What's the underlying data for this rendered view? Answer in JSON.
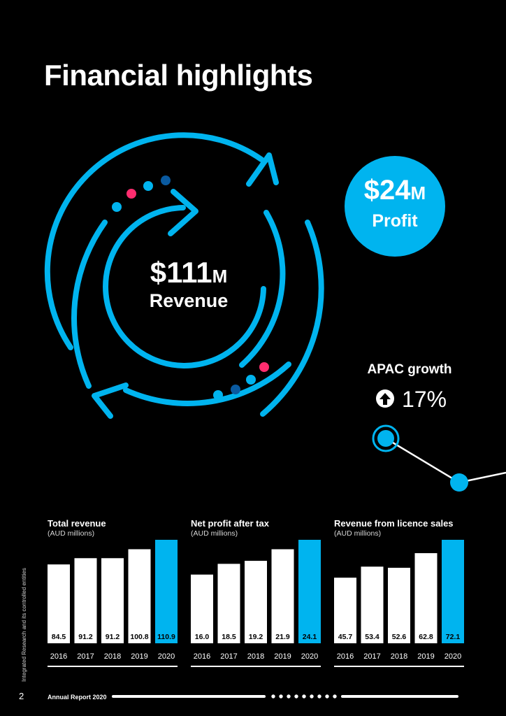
{
  "page": {
    "title": "Financial highlights",
    "side_note": "Integrated Research and its controlled entities",
    "page_number": "2",
    "footer_title": "Annual Report 2020"
  },
  "highlights": {
    "revenue": {
      "value": "$111",
      "unit": "M",
      "label": "Revenue"
    },
    "profit": {
      "value": "$24",
      "unit": "M",
      "label": "Profit"
    },
    "apac": {
      "label": "APAC growth",
      "value": "17%"
    }
  },
  "colors": {
    "accent": "#00b4ef",
    "accent_dark": "#0a5aa0",
    "pink": "#ff2d6f",
    "bar": "#ffffff",
    "background": "#000000"
  },
  "chart_data": [
    {
      "type": "bar",
      "title": "Total revenue",
      "subtitle": "(AUD millions)",
      "categories": [
        "2016",
        "2017",
        "2018",
        "2019",
        "2020"
      ],
      "values": [
        84.5,
        91.2,
        91.2,
        100.8,
        110.9
      ],
      "labels": [
        "84.5",
        "91.2",
        "91.2",
        "100.8",
        "110.9"
      ],
      "highlight_index": 4
    },
    {
      "type": "bar",
      "title": "Net profit after tax",
      "subtitle": "(AUD millions)",
      "categories": [
        "2016",
        "2017",
        "2018",
        "2019",
        "2020"
      ],
      "values": [
        16.0,
        18.5,
        19.2,
        21.9,
        24.1
      ],
      "labels": [
        "16.0",
        "18.5",
        "19.2",
        "21.9",
        "24.1"
      ],
      "highlight_index": 4
    },
    {
      "type": "bar",
      "title": "Revenue from licence sales",
      "subtitle": "(AUD millions)",
      "categories": [
        "2016",
        "2017",
        "2018",
        "2019",
        "2020"
      ],
      "values": [
        45.7,
        53.4,
        52.6,
        62.8,
        72.1
      ],
      "labels": [
        "45.7",
        "53.4",
        "52.6",
        "62.8",
        "72.1"
      ],
      "highlight_index": 4
    }
  ]
}
